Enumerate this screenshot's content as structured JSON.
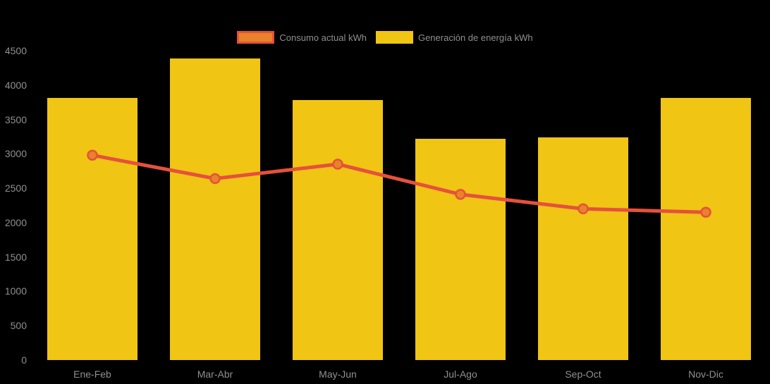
{
  "page": {
    "background": "#000000",
    "text_color": "#8f8f8f"
  },
  "legend": {
    "position": "top",
    "items": [
      {
        "label": "Consumo actual kWh",
        "series": "line",
        "fill": "#e8822b",
        "border": "#e5513c"
      },
      {
        "label": "Generación de energía kWh",
        "series": "bar",
        "fill": "#f0c514",
        "border": "#f0c514"
      }
    ]
  },
  "chart_data": {
    "type": "bar",
    "title": "",
    "xlabel": "",
    "ylabel": "",
    "categories": [
      "Ene-Feb",
      "Mar-Abr",
      "May-Jun",
      "Jul-Ago",
      "Sep-Oct",
      "Nov-Dic"
    ],
    "series": [
      {
        "name": "Generación de energía kWh",
        "type": "bar",
        "color": "#f0c514",
        "values": [
          3810,
          4390,
          3780,
          3220,
          3240,
          3810
        ]
      },
      {
        "name": "Consumo actual kWh",
        "type": "line",
        "color": "#e5513c",
        "marker_color": "#e8822b",
        "values": [
          2980,
          2640,
          2850,
          2410,
          2200,
          2150
        ]
      }
    ],
    "ylim": [
      0,
      4500
    ],
    "ytick_step": 500,
    "yticks": [
      0,
      500,
      1000,
      1500,
      2000,
      2500,
      3000,
      3500,
      4000,
      4500
    ],
    "grid": false,
    "legend_position": "top",
    "axis_label_color": "#8f8f8f",
    "background": "#000000"
  }
}
